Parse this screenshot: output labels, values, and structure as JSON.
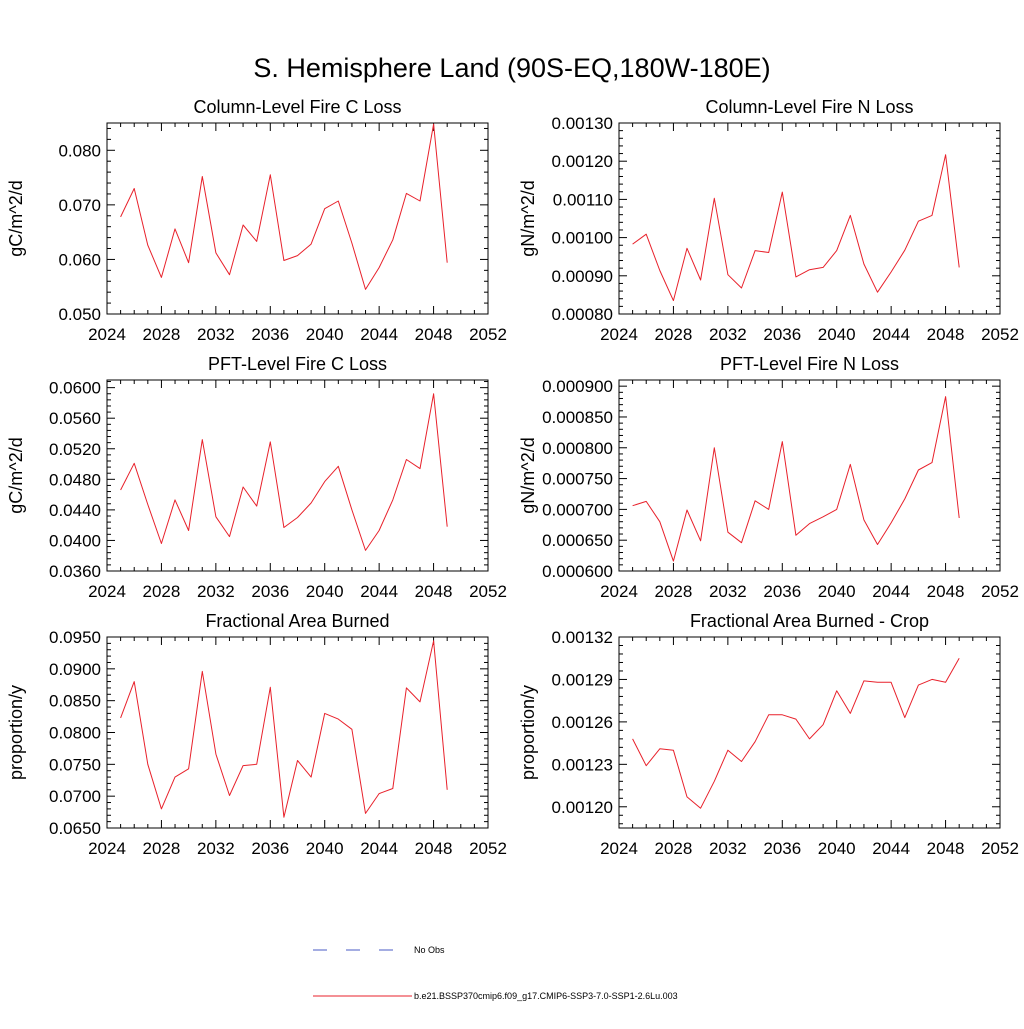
{
  "figure": {
    "title": "S. Hemisphere Land (90S-EQ,180W-180E)"
  },
  "legend": {
    "items": [
      {
        "label": "No Obs",
        "color": "#4a5bc4",
        "style": "dashed"
      },
      {
        "label": "b.e21.BSSP370cmip6.f09_g17.CMIP6-SSP3-7.0-SSP1-2.6Lu.003",
        "color": "#e8212b",
        "style": "solid"
      }
    ]
  },
  "chart_data": [
    {
      "type": "line",
      "title": "Column-Level Fire C Loss",
      "ylabel": "gC/m^2/d",
      "xlim": [
        2024,
        2052
      ],
      "ylim": [
        0.05,
        0.085
      ],
      "xticks": [
        "2024",
        "2028",
        "2032",
        "2036",
        "2040",
        "2044",
        "2048",
        "2052"
      ],
      "yticks": [
        "0.050",
        "0.060",
        "0.070",
        "0.080"
      ],
      "ytick_values": [
        0.05,
        0.06,
        0.07,
        0.08
      ],
      "x": [
        2025,
        2026,
        2027,
        2028,
        2029,
        2030,
        2031,
        2032,
        2033,
        2034,
        2035,
        2036,
        2037,
        2038,
        2039,
        2040,
        2041,
        2042,
        2043,
        2044,
        2045,
        2046,
        2047,
        2048,
        2049
      ],
      "series": [
        {
          "values": [
            0.0678,
            0.073,
            0.0626,
            0.0567,
            0.0656,
            0.0594,
            0.0752,
            0.0612,
            0.0572,
            0.0663,
            0.0633,
            0.0755,
            0.0598,
            0.0607,
            0.0628,
            0.0693,
            0.0707,
            0.063,
            0.0545,
            0.0585,
            0.0636,
            0.0721,
            0.0707,
            0.0848,
            0.0594
          ],
          "color": "#e8212b"
        }
      ]
    },
    {
      "type": "line",
      "title": "Column-Level Fire N Loss",
      "ylabel": "gN/m^2/d",
      "xlim": [
        2024,
        2052
      ],
      "ylim": [
        0.0008,
        0.0013
      ],
      "xticks": [
        "2024",
        "2028",
        "2032",
        "2036",
        "2040",
        "2044",
        "2048",
        "2052"
      ],
      "yticks": [
        "0.00080",
        "0.00090",
        "0.00100",
        "0.00110",
        "0.00120",
        "0.00130"
      ],
      "ytick_values": [
        0.0008,
        0.0009,
        0.001,
        0.0011,
        0.0012,
        0.0013
      ],
      "x": [
        2025,
        2026,
        2027,
        2028,
        2029,
        2030,
        2031,
        2032,
        2033,
        2034,
        2035,
        2036,
        2037,
        2038,
        2039,
        2040,
        2041,
        2042,
        2043,
        2044,
        2045,
        2046,
        2047,
        2048,
        2049
      ],
      "series": [
        {
          "values": [
            0.000983,
            0.001009,
            0.000914,
            0.000835,
            0.000972,
            0.000889,
            0.001103,
            0.000903,
            0.000868,
            0.000966,
            0.000961,
            0.001119,
            0.000897,
            0.000916,
            0.000922,
            0.000966,
            0.001058,
            0.000931,
            0.000857,
            0.00091,
            0.000967,
            0.001043,
            0.001058,
            0.001217,
            0.000922
          ],
          "color": "#e8212b"
        }
      ]
    },
    {
      "type": "line",
      "title": "PFT-Level Fire C Loss",
      "ylabel": "gC/m^2/d",
      "xlim": [
        2024,
        2052
      ],
      "ylim": [
        0.036,
        0.061
      ],
      "xticks": [
        "2024",
        "2028",
        "2032",
        "2036",
        "2040",
        "2044",
        "2048",
        "2052"
      ],
      "yticks": [
        "0.0360",
        "0.0400",
        "0.0440",
        "0.0480",
        "0.0520",
        "0.0560",
        "0.0600"
      ],
      "ytick_values": [
        0.036,
        0.04,
        0.044,
        0.048,
        0.052,
        0.056,
        0.06
      ],
      "x": [
        2025,
        2026,
        2027,
        2028,
        2029,
        2030,
        2031,
        2032,
        2033,
        2034,
        2035,
        2036,
        2037,
        2038,
        2039,
        2040,
        2041,
        2042,
        2043,
        2044,
        2045,
        2046,
        2047,
        2048,
        2049
      ],
      "series": [
        {
          "values": [
            0.0466,
            0.0501,
            0.0447,
            0.0396,
            0.0453,
            0.0413,
            0.0532,
            0.0431,
            0.0405,
            0.047,
            0.0445,
            0.0529,
            0.0417,
            0.043,
            0.0449,
            0.0477,
            0.0497,
            0.044,
            0.0387,
            0.0413,
            0.0453,
            0.0506,
            0.0494,
            0.0592,
            0.0418
          ],
          "color": "#e8212b"
        }
      ]
    },
    {
      "type": "line",
      "title": "PFT-Level Fire N Loss",
      "ylabel": "gN/m^2/d",
      "xlim": [
        2024,
        2052
      ],
      "ylim": [
        0.0006,
        0.00091
      ],
      "xticks": [
        "2024",
        "2028",
        "2032",
        "2036",
        "2040",
        "2044",
        "2048",
        "2052"
      ],
      "yticks": [
        "0.000600",
        "0.000650",
        "0.000700",
        "0.000750",
        "0.000800",
        "0.000850",
        "0.000900"
      ],
      "ytick_values": [
        0.0006,
        0.00065,
        0.0007,
        0.00075,
        0.0008,
        0.00085,
        0.0009
      ],
      "x": [
        2025,
        2026,
        2027,
        2028,
        2029,
        2030,
        2031,
        2032,
        2033,
        2034,
        2035,
        2036,
        2037,
        2038,
        2039,
        2040,
        2041,
        2042,
        2043,
        2044,
        2045,
        2046,
        2047,
        2048,
        2049
      ],
      "series": [
        {
          "values": [
            0.000706,
            0.000713,
            0.00068,
            0.000616,
            0.000699,
            0.000649,
            0.0008,
            0.000663,
            0.000646,
            0.000714,
            0.0007,
            0.00081,
            0.000658,
            0.000677,
            0.000688,
            0.0007,
            0.000773,
            0.000683,
            0.000643,
            0.000678,
            0.000717,
            0.000764,
            0.000776,
            0.000883,
            0.000686
          ],
          "color": "#e8212b"
        }
      ]
    },
    {
      "type": "line",
      "title": "Fractional Area Burned",
      "ylabel": "proportion/y",
      "xlim": [
        2024,
        2052
      ],
      "ylim": [
        0.065,
        0.095
      ],
      "xticks": [
        "2024",
        "2028",
        "2032",
        "2036",
        "2040",
        "2044",
        "2048",
        "2052"
      ],
      "yticks": [
        "0.0650",
        "0.0700",
        "0.0750",
        "0.0800",
        "0.0850",
        "0.0900",
        "0.0950"
      ],
      "ytick_values": [
        0.065,
        0.07,
        0.075,
        0.08,
        0.085,
        0.09,
        0.095
      ],
      "x": [
        2025,
        2026,
        2027,
        2028,
        2029,
        2030,
        2031,
        2032,
        2033,
        2034,
        2035,
        2036,
        2037,
        2038,
        2039,
        2040,
        2041,
        2042,
        2043,
        2044,
        2045,
        2046,
        2047,
        2048,
        2049
      ],
      "series": [
        {
          "values": [
            0.0823,
            0.088,
            0.075,
            0.068,
            0.073,
            0.0743,
            0.0896,
            0.0766,
            0.0701,
            0.0748,
            0.075,
            0.0871,
            0.0667,
            0.0756,
            0.073,
            0.083,
            0.0821,
            0.0805,
            0.0673,
            0.0704,
            0.0712,
            0.087,
            0.0848,
            0.0944,
            0.071
          ],
          "color": "#e8212b"
        }
      ]
    },
    {
      "type": "line",
      "title": "Fractional Area Burned - Crop",
      "ylabel": "proportion/y",
      "xlim": [
        2024,
        2052
      ],
      "ylim": [
        0.001185,
        0.00132
      ],
      "xticks": [
        "2024",
        "2028",
        "2032",
        "2036",
        "2040",
        "2044",
        "2048",
        "2052"
      ],
      "yticks": [
        "0.00120",
        "0.00123",
        "0.00126",
        "0.00129",
        "0.00132"
      ],
      "ytick_values": [
        0.0012,
        0.00123,
        0.00126,
        0.00129,
        0.00132
      ],
      "x": [
        2025,
        2026,
        2027,
        2028,
        2029,
        2030,
        2031,
        2032,
        2033,
        2034,
        2035,
        2036,
        2037,
        2038,
        2039,
        2040,
        2041,
        2042,
        2043,
        2044,
        2045,
        2046,
        2047,
        2048,
        2049
      ],
      "series": [
        {
          "values": [
            0.001248,
            0.001229,
            0.001241,
            0.00124,
            0.001207,
            0.001199,
            0.001218,
            0.00124,
            0.001232,
            0.001246,
            0.001265,
            0.001265,
            0.001262,
            0.001248,
            0.001258,
            0.001282,
            0.001266,
            0.001289,
            0.001288,
            0.001288,
            0.001263,
            0.001286,
            0.00129,
            0.001288,
            0.001305
          ],
          "color": "#e8212b"
        }
      ]
    }
  ]
}
